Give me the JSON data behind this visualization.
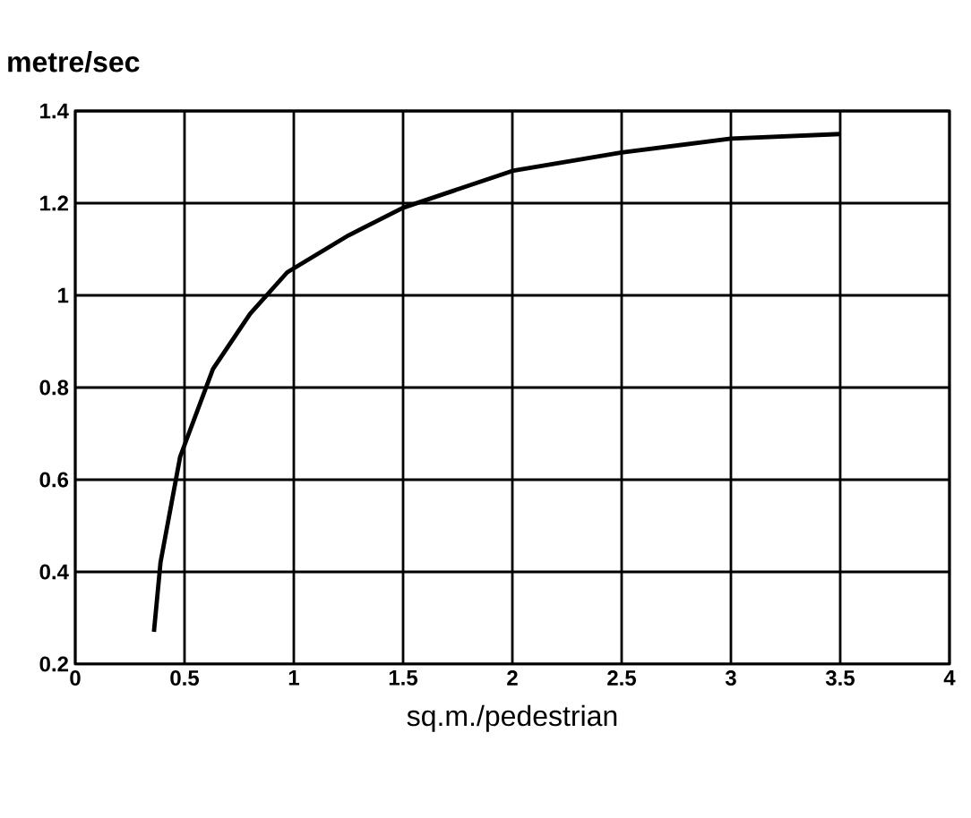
{
  "chart_data": {
    "type": "line",
    "xlabel": "sq.m./pedestrian",
    "ylabel": "metre/sec",
    "x": [
      0.36,
      0.39,
      0.48,
      0.63,
      0.8,
      0.97,
      1.25,
      1.5,
      2,
      2.5,
      3,
      3.5
    ],
    "series": [
      {
        "color": "#000000",
        "values": [
          0.27,
          0.42,
          0.65,
          0.84,
          0.96,
          1.05,
          1.13,
          1.19,
          1.27,
          1.31,
          1.34,
          1.35
        ]
      }
    ],
    "xlim": [
      0,
      4
    ],
    "ylim": [
      0.2,
      1.4
    ],
    "xticks": [
      0,
      0.5,
      1,
      1.5,
      2,
      2.5,
      3,
      3.5,
      4
    ],
    "yticks": [
      0.2,
      0.4,
      0.6,
      0.8,
      1,
      1.2,
      1.4
    ],
    "grid": true,
    "marker": "none",
    "line_style": "solid"
  }
}
